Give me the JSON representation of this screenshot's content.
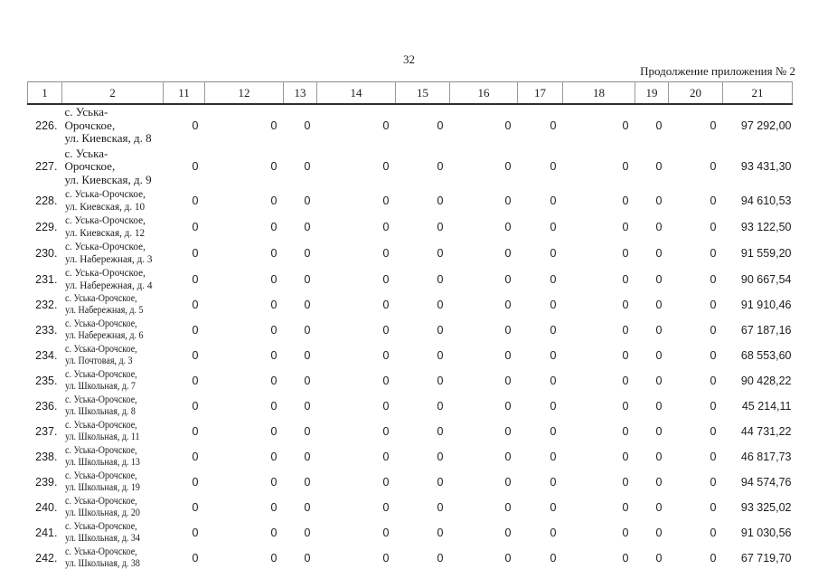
{
  "page": {
    "number": "32",
    "continuation_note": "Продолжение приложения № 2"
  },
  "table": {
    "columns": [
      "1",
      "2",
      "11",
      "12",
      "13",
      "14",
      "15",
      "16",
      "17",
      "18",
      "19",
      "20",
      "21"
    ],
    "rows": [
      {
        "n": "226.",
        "addr": [
          "с. Уська-",
          "Орочское,",
          "ул. Киевская, д. 8"
        ],
        "compact": 0,
        "vals": [
          "0",
          "0",
          "0",
          "0",
          "0",
          "0",
          "0",
          "0",
          "0",
          "0",
          "97 292,00"
        ]
      },
      {
        "n": "227.",
        "addr": [
          "с. Уська-",
          "Орочское,",
          "ул. Киевская, д. 9"
        ],
        "compact": 0,
        "vals": [
          "0",
          "0",
          "0",
          "0",
          "0",
          "0",
          "0",
          "0",
          "0",
          "0",
          "93 431,30"
        ]
      },
      {
        "n": "228.",
        "addr": [
          "с. Уська-Орочское,",
          "ул. Киевская, д. 10"
        ],
        "compact": 1,
        "vals": [
          "0",
          "0",
          "0",
          "0",
          "0",
          "0",
          "0",
          "0",
          "0",
          "0",
          "94 610,53"
        ]
      },
      {
        "n": "229.",
        "addr": [
          "с. Уська-Орочское,",
          "ул. Киевская, д. 12"
        ],
        "compact": 1,
        "vals": [
          "0",
          "0",
          "0",
          "0",
          "0",
          "0",
          "0",
          "0",
          "0",
          "0",
          "93 122,50"
        ]
      },
      {
        "n": "230.",
        "addr": [
          "с. Уська-Орочское,",
          "ул. Набережная, д. 3"
        ],
        "compact": 1,
        "vals": [
          "0",
          "0",
          "0",
          "0",
          "0",
          "0",
          "0",
          "0",
          "0",
          "0",
          "91 559,20"
        ]
      },
      {
        "n": "231.",
        "addr": [
          "с. Уська-Орочское,",
          "ул. Набережная, д. 4"
        ],
        "compact": 1,
        "vals": [
          "0",
          "0",
          "0",
          "0",
          "0",
          "0",
          "0",
          "0",
          "0",
          "0",
          "90 667,54"
        ]
      },
      {
        "n": "232.",
        "addr": [
          "с. Уська-Орочское,",
          "ул. Набережная, д. 5"
        ],
        "compact": 2,
        "vals": [
          "0",
          "0",
          "0",
          "0",
          "0",
          "0",
          "0",
          "0",
          "0",
          "0",
          "91 910,46"
        ]
      },
      {
        "n": "233.",
        "addr": [
          "с. Уська-Орочское,",
          "ул. Набережная, д. 6"
        ],
        "compact": 2,
        "vals": [
          "0",
          "0",
          "0",
          "0",
          "0",
          "0",
          "0",
          "0",
          "0",
          "0",
          "67 187,16"
        ]
      },
      {
        "n": "234.",
        "addr": [
          "с. Уська-Орочское,",
          "ул. Почтовая, д. 3"
        ],
        "compact": 2,
        "vals": [
          "0",
          "0",
          "0",
          "0",
          "0",
          "0",
          "0",
          "0",
          "0",
          "0",
          "68 553,60"
        ]
      },
      {
        "n": "235.",
        "addr": [
          "с. Уська-Орочское,",
          "ул. Школьная, д. 7"
        ],
        "compact": 2,
        "vals": [
          "0",
          "0",
          "0",
          "0",
          "0",
          "0",
          "0",
          "0",
          "0",
          "0",
          "90 428,22"
        ]
      },
      {
        "n": "236.",
        "addr": [
          "с. Уська-Орочское,",
          "ул. Школьная, д. 8"
        ],
        "compact": 2,
        "vals": [
          "0",
          "0",
          "0",
          "0",
          "0",
          "0",
          "0",
          "0",
          "0",
          "0",
          "45 214,11"
        ]
      },
      {
        "n": "237.",
        "addr": [
          "с. Уська-Орочское,",
          "ул. Школьная, д. 11"
        ],
        "compact": 2,
        "vals": [
          "0",
          "0",
          "0",
          "0",
          "0",
          "0",
          "0",
          "0",
          "0",
          "0",
          "44 731,22"
        ]
      },
      {
        "n": "238.",
        "addr": [
          "с. Уська-Орочское,",
          "ул. Школьная, д. 13"
        ],
        "compact": 2,
        "vals": [
          "0",
          "0",
          "0",
          "0",
          "0",
          "0",
          "0",
          "0",
          "0",
          "0",
          "46 817,73"
        ]
      },
      {
        "n": "239.",
        "addr": [
          "с. Уська-Орочское,",
          "ул. Школьная, д. 19"
        ],
        "compact": 2,
        "vals": [
          "0",
          "0",
          "0",
          "0",
          "0",
          "0",
          "0",
          "0",
          "0",
          "0",
          "94 574,76"
        ]
      },
      {
        "n": "240.",
        "addr": [
          "с. Уська-Орочское,",
          "ул. Школьная, д. 20"
        ],
        "compact": 2,
        "vals": [
          "0",
          "0",
          "0",
          "0",
          "0",
          "0",
          "0",
          "0",
          "0",
          "0",
          "93 325,02"
        ]
      },
      {
        "n": "241.",
        "addr": [
          "с. Уська-Орочское,",
          "ул. Школьная, д. 34"
        ],
        "compact": 2,
        "vals": [
          "0",
          "0",
          "0",
          "0",
          "0",
          "0",
          "0",
          "0",
          "0",
          "0",
          "91 030,56"
        ]
      },
      {
        "n": "242.",
        "addr": [
          "с. Уська-Орочское,",
          "ул. Школьная, д. 38"
        ],
        "compact": 2,
        "vals": [
          "0",
          "0",
          "0",
          "0",
          "0",
          "0",
          "0",
          "0",
          "0",
          "0",
          "67 719,70"
        ]
      }
    ]
  }
}
